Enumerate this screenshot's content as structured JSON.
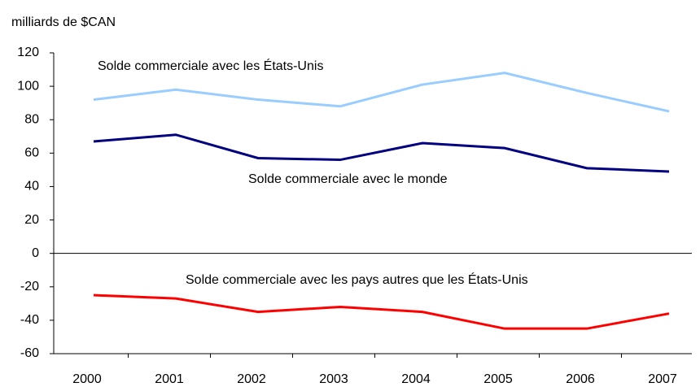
{
  "chart_data": {
    "type": "line",
    "y_axis_label": "milliards de $CAN",
    "categories": [
      "2000",
      "2001",
      "2002",
      "2003",
      "2004",
      "2005",
      "2006",
      "2007"
    ],
    "series": [
      {
        "name": "Solde commerciale avec les États-Unis",
        "color": "#99ccff",
        "values": [
          92,
          98,
          92,
          88,
          101,
          108,
          96,
          85
        ]
      },
      {
        "name": "Solde commerciale avec le monde",
        "color": "#000080",
        "values": [
          67,
          71,
          57,
          56,
          66,
          63,
          51,
          49
        ]
      },
      {
        "name": "Solde commerciale avec les pays autres que les États-Unis",
        "color": "#ff0000",
        "values": [
          -25,
          -27,
          -35,
          -32,
          -35,
          -45,
          -45,
          -36
        ]
      }
    ],
    "ylim": [
      -60,
      120
    ],
    "yticks": [
      -60,
      -40,
      -20,
      0,
      20,
      40,
      60,
      80,
      100,
      120
    ]
  }
}
